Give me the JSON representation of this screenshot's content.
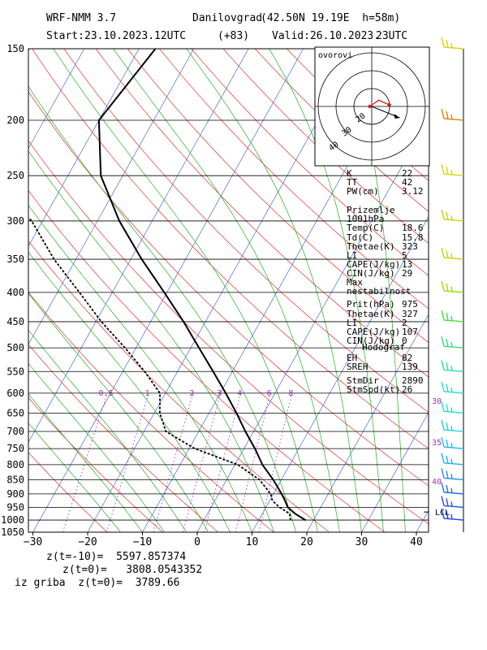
{
  "header": {
    "model": "WRF-NMM 3.7",
    "station": "Danilovgrad",
    "coords": "(42.50N 19.19E  h=58m)",
    "start": "Start:23.10.2023.",
    "start_hour": "12UTC",
    "lead": "(+83)",
    "valid": "Valid:26.10.2023.",
    "valid_hour": "23UTC"
  },
  "hodograph": {
    "label": "ovorovi",
    "ring_labels": [
      "20",
      "30",
      "40"
    ],
    "trace": [
      [
        -0.5,
        0.0
      ],
      [
        1.8,
        1.6
      ],
      [
        4.5,
        0.4
      ]
    ],
    "storm_motion": [
      4.6,
      -1.0
    ]
  },
  "indices": {
    "rows": [
      {
        "k": "K",
        "v": "22"
      },
      {
        "k": "TT",
        "v": "42"
      },
      {
        "k": "PW(cm)",
        "v": "3.12"
      }
    ]
  },
  "surface": {
    "title": "Prizemlje 1001hPa",
    "rows": [
      {
        "k": "Temp(C)",
        "v": "18.6"
      },
      {
        "k": "Td(C)",
        "v": "15.8"
      },
      {
        "k": "Thetae(K)",
        "v": "323"
      },
      {
        "k": "LI",
        "v": "5"
      },
      {
        "k": "CAPE(J/kg)",
        "v": "13"
      },
      {
        "k": "CIN(J/kg)",
        "v": "29"
      }
    ]
  },
  "max_instability": {
    "title": "Max nestabilnost",
    "rows": [
      {
        "k": "Prit(hPa)",
        "v": "975"
      },
      {
        "k": "Thetae(K)",
        "v": "327"
      },
      {
        "k": "LI",
        "v": "2"
      },
      {
        "k": "CAPE(J/kg)",
        "v": "107"
      },
      {
        "k": "CIN(J/kg)",
        "v": "0"
      }
    ]
  },
  "hodograf": {
    "title": "Hodograf",
    "rows": [
      {
        "k": "EH",
        "v": "82"
      },
      {
        "k": "SREH",
        "v": "139"
      },
      {
        "k": "StmDir",
        "v": "2890"
      },
      {
        "k": "StmSpd(kt)",
        "v": "26"
      }
    ]
  },
  "footer": {
    "line1": "z(t=-10)=  5597.857374",
    "line2": "z(t=0)=   3808.0543352",
    "line3": "iz griba  z(t=0)=  3789.66"
  },
  "chart_data": {
    "type": "line",
    "xlabel": "",
    "ylabel": "",
    "pressure_levels": [
      150,
      200,
      250,
      300,
      350,
      400,
      450,
      500,
      550,
      600,
      650,
      700,
      750,
      800,
      850,
      900,
      950,
      1000,
      1050
    ],
    "temperature_ticks": [
      -30,
      -20,
      -10,
      0,
      10,
      20,
      30,
      40
    ],
    "xlim": [
      -30,
      42
    ],
    "ylim": [
      1050,
      150
    ],
    "mixing_ratio_labels": [
      "0.5",
      "1",
      "2",
      "3",
      "4",
      "6",
      "8"
    ],
    "theta_e_labels": [
      "30",
      "35",
      "40"
    ],
    "lcl_label": "LCL",
    "lcl_pressure": 968,
    "series": [
      {
        "p": [
          1001,
          975,
          950,
          925,
          900,
          850,
          800,
          750,
          700,
          650,
          600,
          550,
          500,
          450,
          400,
          350,
          300,
          250,
          200,
          150
        ],
        "t": [
          18.6,
          16.0,
          14.0,
          12.8,
          11.5,
          8.5,
          5.0,
          2.0,
          -1.5,
          -5.0,
          -9.0,
          -13.5,
          -18.5,
          -24.0,
          -30.5,
          -38.0,
          -46.0,
          -54.0,
          -60.0,
          -57.0
        ]
      },
      {
        "p": [
          1001,
          975,
          950,
          925,
          900,
          850,
          800,
          750,
          700,
          650,
          600,
          550,
          500,
          450,
          400,
          350,
          300,
          250,
          200,
          150
        ],
        "t": [
          15.8,
          15.0,
          12.5,
          10.5,
          9.5,
          6.0,
          0.5,
          -9.0,
          -16.0,
          -19.0,
          -21.0,
          -26.0,
          -32.0,
          -39.0,
          -46.0,
          -54.0,
          -62.0,
          -75.0,
          -93.0,
          -87.0
        ]
      }
    ]
  },
  "wind_barbs": [
    {
      "p": 150,
      "color": "#d6d600"
    },
    {
      "p": 200,
      "color": "#e08000"
    },
    {
      "p": 250,
      "color": "#d6d600"
    },
    {
      "p": 300,
      "color": "#c8d600"
    },
    {
      "p": 350,
      "color": "#c8d600"
    },
    {
      "p": 400,
      "color": "#90e000"
    },
    {
      "p": 450,
      "color": "#40e040"
    },
    {
      "p": 500,
      "color": "#30e080"
    },
    {
      "p": 550,
      "color": "#20e0b0"
    },
    {
      "p": 600,
      "color": "#20e0c0"
    },
    {
      "p": 650,
      "color": "#20e0d0"
    },
    {
      "p": 700,
      "color": "#20d0e0"
    },
    {
      "p": 750,
      "color": "#20c0e8"
    },
    {
      "p": 800,
      "color": "#20b0f0"
    },
    {
      "p": 850,
      "color": "#2090f0"
    },
    {
      "p": 900,
      "color": "#2070f0"
    },
    {
      "p": 950,
      "color": "#2050f0"
    },
    {
      "p": 1000,
      "color": "#2040f0"
    }
  ]
}
